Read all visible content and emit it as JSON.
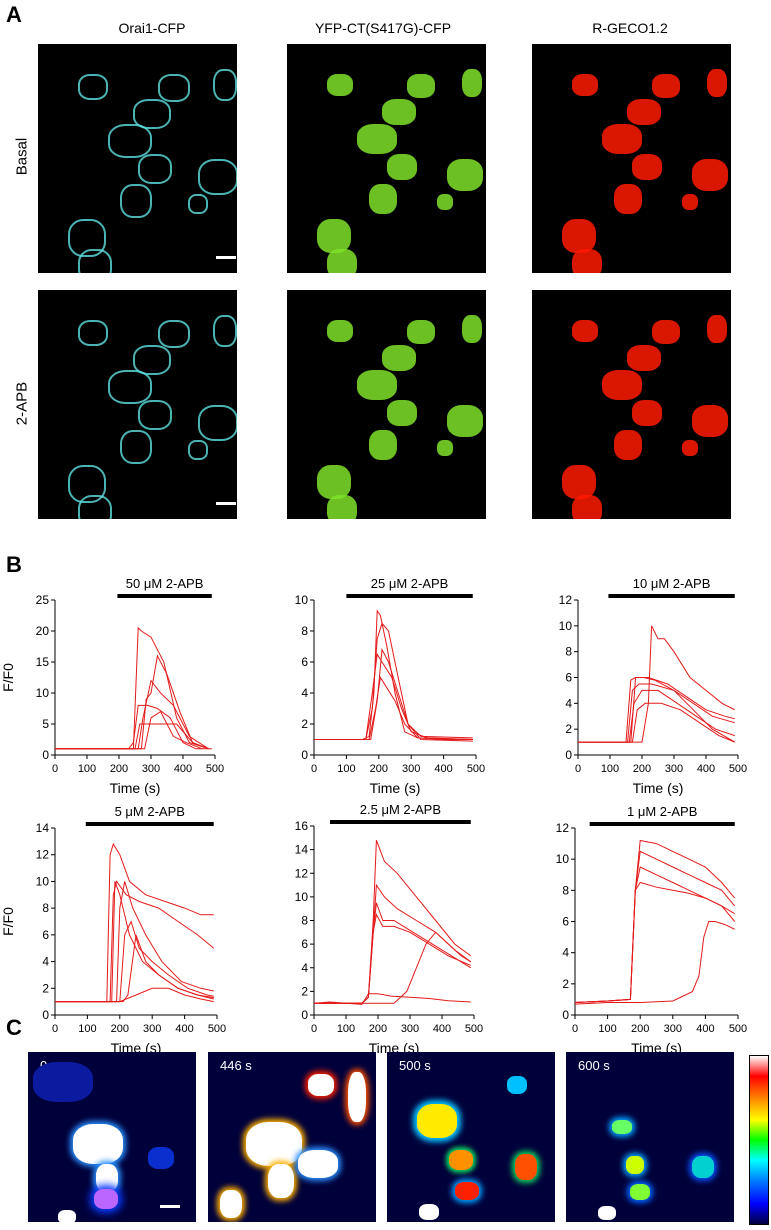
{
  "panels": {
    "A": {
      "letter": "A",
      "columns": [
        "Orai1-CFP",
        "YFP-CT(S417G)-CFP",
        "R-GECO1.2"
      ],
      "rows": [
        "Basal",
        "2-APB"
      ],
      "channel_colors": [
        "#5fe0e0",
        "#7fe22a",
        "#ff1a00"
      ]
    },
    "B": {
      "letter": "B"
    },
    "C": {
      "letter": "C",
      "times": [
        "0 s",
        "446 s",
        "500 s",
        "600 s"
      ]
    }
  },
  "chart_data": [
    {
      "type": "line",
      "title": "50 μM 2-APB",
      "ylabel": "F/F0",
      "xlabel": "Time (s)",
      "xlim": [
        0,
        500
      ],
      "ylim": [
        0,
        25
      ],
      "yticks": [
        0,
        5,
        10,
        15,
        20,
        25
      ],
      "xticks": [
        0,
        100,
        200,
        300,
        400,
        500
      ],
      "bar": [
        195,
        490
      ],
      "series": [
        {
          "x": [
            0,
            230,
            245,
            260,
            275,
            290,
            320,
            360,
            400,
            440,
            490
          ],
          "y": [
            1,
            1,
            2,
            8,
            8,
            8,
            7.5,
            6,
            2,
            1,
            1
          ]
        },
        {
          "x": [
            0,
            245,
            260,
            270,
            300,
            340,
            380,
            420,
            480
          ],
          "y": [
            1,
            1,
            20.5,
            20,
            19,
            15,
            6,
            2,
            1
          ]
        },
        {
          "x": [
            0,
            270,
            285,
            300,
            320,
            350,
            390,
            430,
            480
          ],
          "y": [
            1,
            1,
            9,
            10,
            16,
            13,
            7,
            2,
            1
          ]
        },
        {
          "x": [
            0,
            260,
            275,
            300,
            330,
            370,
            420,
            480
          ],
          "y": [
            1,
            1,
            6,
            12,
            10,
            8,
            3,
            1
          ]
        },
        {
          "x": [
            0,
            250,
            265,
            300,
            340,
            380,
            430,
            480
          ],
          "y": [
            1,
            1,
            5,
            5,
            5,
            5,
            2,
            1
          ]
        },
        {
          "x": [
            0,
            280,
            300,
            330,
            370,
            410,
            460
          ],
          "y": [
            1,
            1,
            6,
            7,
            3,
            2,
            1
          ]
        }
      ]
    },
    {
      "type": "line",
      "title": "25 μM 2-APB",
      "ylabel": "",
      "xlabel": "Time (s)",
      "xlim": [
        0,
        500
      ],
      "ylim": [
        0,
        10
      ],
      "yticks": [
        0,
        2,
        4,
        6,
        8,
        10
      ],
      "xticks": [
        0,
        100,
        200,
        300,
        400,
        500
      ],
      "bar": [
        100,
        490
      ],
      "series": [
        {
          "x": [
            0,
            150,
            170,
            185,
            195,
            205,
            225,
            250,
            280,
            320,
            400,
            490
          ],
          "y": [
            1,
            1,
            1.2,
            4,
            9.3,
            9,
            7,
            4,
            1.5,
            1.1,
            1,
            1
          ]
        },
        {
          "x": [
            0,
            160,
            180,
            195,
            210,
            230,
            260,
            290,
            330,
            490
          ],
          "y": [
            1,
            1,
            3,
            7.5,
            8.5,
            8,
            5,
            2,
            1,
            0.9
          ]
        },
        {
          "x": [
            0,
            160,
            180,
            195,
            210,
            240,
            270,
            300,
            350,
            490
          ],
          "y": [
            1,
            1,
            4,
            6.5,
            6,
            5,
            3,
            1.5,
            1.1,
            1
          ]
        },
        {
          "x": [
            0,
            170,
            190,
            205,
            220,
            250,
            280,
            320,
            490
          ],
          "y": [
            1,
            1,
            3,
            5,
            4.5,
            3.5,
            2,
            1.1,
            1
          ]
        },
        {
          "x": [
            0,
            175,
            195,
            210,
            230,
            260,
            290,
            330,
            490
          ],
          "y": [
            1,
            1,
            3.5,
            6.8,
            6,
            4,
            2,
            1.2,
            1.1
          ]
        }
      ]
    },
    {
      "type": "line",
      "title": "10 μM 2-APB",
      "ylabel": "",
      "xlabel": "Time (s)",
      "xlim": [
        0,
        500
      ],
      "ylim": [
        0,
        12
      ],
      "yticks": [
        0,
        2,
        4,
        6,
        8,
        10,
        12
      ],
      "xticks": [
        0,
        100,
        200,
        300,
        400,
        500
      ],
      "bar": [
        95,
        490
      ],
      "series": [
        {
          "x": [
            0,
            200,
            220,
            230,
            250,
            270,
            300,
            350,
            400,
            450,
            490
          ],
          "y": [
            1,
            1,
            4,
            10,
            9,
            9,
            8,
            6,
            5,
            4,
            3.5
          ]
        },
        {
          "x": [
            0,
            150,
            165,
            180,
            220,
            280,
            340,
            400,
            460,
            490
          ],
          "y": [
            1,
            1,
            5.8,
            6,
            6,
            5.5,
            4.5,
            3.5,
            3,
            2.8
          ]
        },
        {
          "x": [
            0,
            155,
            170,
            190,
            230,
            300,
            360,
            420,
            490
          ],
          "y": [
            1,
            1,
            5,
            5.5,
            5.5,
            5,
            3.5,
            2,
            1
          ]
        },
        {
          "x": [
            0,
            160,
            175,
            200,
            250,
            310,
            370,
            430,
            490
          ],
          "y": [
            1,
            1,
            4,
            5,
            5,
            4,
            3,
            2,
            1.5
          ]
        },
        {
          "x": [
            0,
            170,
            185,
            210,
            260,
            320,
            380,
            440,
            490
          ],
          "y": [
            1,
            1,
            3.5,
            4,
            4,
            3.5,
            2.5,
            1.5,
            1
          ]
        },
        {
          "x": [
            0,
            165,
            180,
            205,
            240,
            300,
            360,
            420,
            490
          ],
          "y": [
            1,
            1,
            6,
            6,
            5.8,
            5,
            4,
            3,
            2.5
          ]
        }
      ]
    },
    {
      "type": "line",
      "title": "5 μM 2-APB",
      "ylabel": "F/F0",
      "xlabel": "Time (s)",
      "xlim": [
        0,
        500
      ],
      "ylim": [
        0,
        14
      ],
      "yticks": [
        0,
        2,
        4,
        6,
        8,
        10,
        12,
        14
      ],
      "xticks": [
        0,
        100,
        200,
        300,
        400,
        500
      ],
      "bar": [
        95,
        490
      ],
      "series": [
        {
          "x": [
            0,
            160,
            170,
            180,
            200,
            230,
            280,
            340,
            400,
            450,
            490
          ],
          "y": [
            1,
            1,
            12,
            12.8,
            12,
            10,
            9,
            8.5,
            8,
            7.5,
            7.5
          ]
        },
        {
          "x": [
            0,
            170,
            180,
            190,
            220,
            260,
            320,
            380,
            440,
            490
          ],
          "y": [
            1,
            1,
            9,
            10,
            9,
            8.5,
            8,
            7,
            6,
            5
          ]
        },
        {
          "x": [
            0,
            175,
            185,
            200,
            230,
            270,
            320,
            380,
            440,
            490
          ],
          "y": [
            1,
            1,
            10,
            9,
            6,
            4,
            3,
            2,
            1.5,
            1.2
          ]
        },
        {
          "x": [
            0,
            190,
            200,
            215,
            240,
            280,
            330,
            390,
            450,
            490
          ],
          "y": [
            1,
            1,
            8,
            10,
            8,
            6,
            4,
            2.5,
            2,
            1.8
          ]
        },
        {
          "x": [
            0,
            200,
            215,
            235,
            260,
            300,
            350,
            410,
            470,
            490
          ],
          "y": [
            1,
            1,
            6,
            7,
            5,
            4,
            3,
            2,
            1.5,
            1.4
          ]
        },
        {
          "x": [
            0,
            210,
            225,
            250,
            280,
            320,
            380,
            440,
            490
          ],
          "y": [
            1,
            1,
            1.5,
            6,
            4,
            3,
            2,
            1.5,
            1.3
          ]
        },
        {
          "x": [
            0,
            200,
            250,
            300,
            350,
            400,
            450,
            490
          ],
          "y": [
            1,
            1,
            1.5,
            2,
            2,
            1.5,
            1.2,
            1
          ]
        }
      ]
    },
    {
      "type": "line",
      "title": "2.5 μM 2-APB",
      "ylabel": "",
      "xlabel": "Time (s)",
      "xlim": [
        0,
        500
      ],
      "ylim": [
        0,
        16
      ],
      "yticks": [
        0,
        2,
        4,
        6,
        8,
        10,
        12,
        14,
        16
      ],
      "xticks": [
        0,
        100,
        200,
        300,
        400,
        500
      ],
      "bar": [
        50,
        490
      ],
      "series": [
        {
          "x": [
            0,
            150,
            170,
            185,
            195,
            220,
            260,
            320,
            380,
            440,
            490
          ],
          "y": [
            1,
            1,
            1.5,
            8,
            14.8,
            13,
            12,
            10,
            8,
            6,
            5
          ]
        },
        {
          "x": [
            0,
            150,
            170,
            185,
            195,
            220,
            260,
            320,
            380,
            440,
            490
          ],
          "y": [
            1,
            1,
            1.5,
            7,
            11,
            10,
            9,
            8,
            7,
            5.5,
            4.5
          ]
        },
        {
          "x": [
            0,
            150,
            170,
            185,
            195,
            215,
            250,
            310,
            370,
            430,
            490
          ],
          "y": [
            1,
            1,
            1.5,
            7,
            9.5,
            8,
            8,
            7,
            6,
            5,
            4
          ]
        },
        {
          "x": [
            0,
            150,
            170,
            185,
            195,
            215,
            250,
            300,
            360,
            420,
            490
          ],
          "y": [
            1,
            1,
            1.5,
            7,
            8.5,
            7.5,
            7.5,
            7,
            6,
            5,
            4.2
          ]
        },
        {
          "x": [
            0,
            50,
            100,
            150,
            170,
            200,
            240,
            300,
            360,
            420,
            490
          ],
          "y": [
            1,
            1.1,
            1,
            0.9,
            1.8,
            1.8,
            1.6,
            1.5,
            1.4,
            1.2,
            1.1
          ]
        },
        {
          "x": [
            0,
            250,
            290,
            320,
            350,
            380,
            420,
            460,
            490
          ],
          "y": [
            1,
            1,
            2,
            4,
            6,
            7,
            6,
            5,
            4.5
          ]
        }
      ]
    },
    {
      "type": "line",
      "title": "1 μM 2-APB",
      "ylabel": "",
      "xlabel": "Time (s)",
      "xlim": [
        0,
        500
      ],
      "ylim": [
        0,
        12
      ],
      "yticks": [
        0,
        2,
        4,
        6,
        8,
        10,
        12
      ],
      "xticks": [
        0,
        100,
        200,
        300,
        400,
        500
      ],
      "bar": [
        45,
        490
      ],
      "series": [
        {
          "x": [
            0,
            100,
            170,
            185,
            200,
            250,
            300,
            350,
            400,
            450,
            490
          ],
          "y": [
            0.8,
            0.9,
            1,
            8,
            11.2,
            11,
            10.5,
            10,
            9.5,
            8.5,
            7.5
          ]
        },
        {
          "x": [
            0,
            100,
            170,
            185,
            200,
            250,
            300,
            350,
            400,
            450,
            490
          ],
          "y": [
            0.8,
            0.9,
            1,
            8,
            10.5,
            10,
            9.5,
            9,
            8.5,
            8,
            7
          ]
        },
        {
          "x": [
            0,
            100,
            170,
            185,
            200,
            250,
            300,
            350,
            400,
            450,
            490
          ],
          "y": [
            0.8,
            0.9,
            1,
            8,
            9.5,
            9,
            8.5,
            8,
            7.5,
            7,
            6.5
          ]
        },
        {
          "x": [
            0,
            100,
            170,
            185,
            200,
            250,
            300,
            350,
            400,
            450,
            490
          ],
          "y": [
            0.8,
            0.9,
            1,
            8,
            8.5,
            8.2,
            8,
            7.8,
            7.5,
            7,
            6
          ]
        },
        {
          "x": [
            0,
            100,
            200,
            300,
            360,
            380,
            395,
            410,
            430,
            460,
            490
          ],
          "y": [
            0.7,
            0.8,
            0.8,
            0.9,
            1.5,
            2.5,
            5,
            6,
            6,
            5.8,
            5.5
          ]
        }
      ]
    }
  ]
}
